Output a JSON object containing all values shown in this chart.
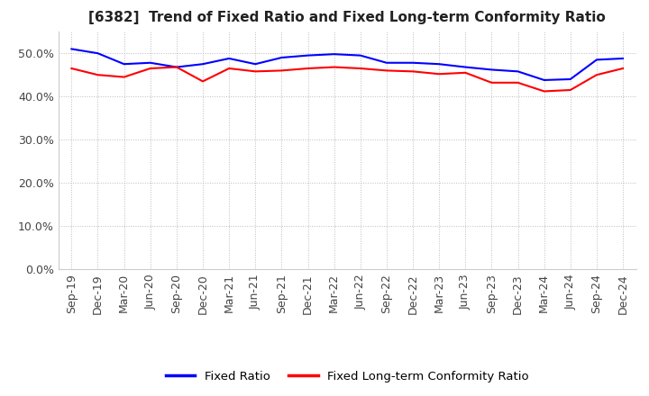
{
  "title": "[6382]  Trend of Fixed Ratio and Fixed Long-term Conformity Ratio",
  "x_labels": [
    "Sep-19",
    "Dec-19",
    "Mar-20",
    "Jun-20",
    "Sep-20",
    "Dec-20",
    "Mar-21",
    "Jun-21",
    "Sep-21",
    "Dec-21",
    "Mar-22",
    "Jun-22",
    "Sep-22",
    "Dec-22",
    "Mar-23",
    "Jun-23",
    "Sep-23",
    "Dec-23",
    "Mar-24",
    "Jun-24",
    "Sep-24",
    "Dec-24"
  ],
  "fixed_ratio": [
    51.0,
    50.0,
    47.5,
    47.8,
    46.8,
    47.5,
    48.8,
    47.5,
    49.0,
    49.5,
    49.8,
    49.5,
    47.8,
    47.8,
    47.5,
    46.8,
    46.2,
    45.8,
    43.8,
    44.0,
    48.5,
    48.8
  ],
  "fixed_lt_ratio": [
    46.5,
    45.0,
    44.5,
    46.5,
    46.8,
    43.5,
    46.5,
    45.8,
    46.0,
    46.5,
    46.8,
    46.5,
    46.0,
    45.8,
    45.2,
    45.5,
    43.2,
    43.2,
    41.2,
    41.5,
    45.0,
    46.5
  ],
  "fixed_ratio_color": "#0000ff",
  "fixed_lt_ratio_color": "#ff0000",
  "ylim": [
    0,
    55
  ],
  "yticks": [
    0.0,
    10.0,
    20.0,
    30.0,
    40.0,
    50.0
  ],
  "grid_color": "#bbbbbb",
  "grid_linestyle": "dotted",
  "background_color": "#ffffff",
  "legend_fixed_ratio": "Fixed Ratio",
  "legend_fixed_lt_ratio": "Fixed Long-term Conformity Ratio",
  "title_fontsize": 11,
  "tick_fontsize": 9,
  "legend_fontsize": 9.5
}
